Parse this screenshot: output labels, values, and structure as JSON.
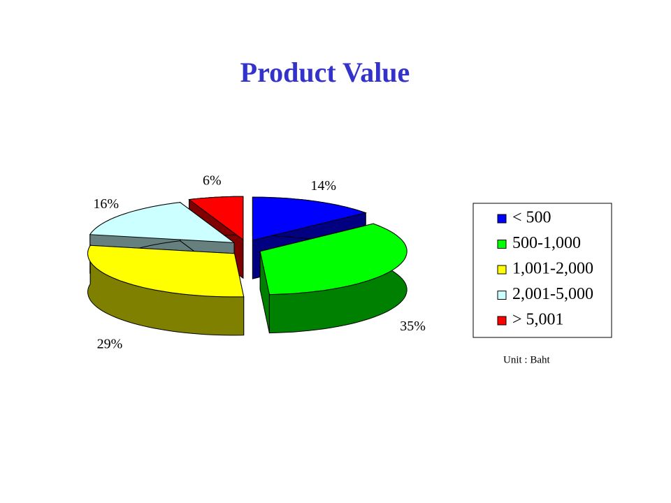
{
  "chart_data": {
    "type": "pie",
    "title": "Product Value",
    "categories": [
      "< 500",
      "500-1,000",
      "1,001-2,000",
      "2,001-5,000",
      "> 5,001"
    ],
    "values": [
      14,
      35,
      29,
      16,
      6
    ],
    "value_labels": [
      "14%",
      "35%",
      "29%",
      "16%",
      "6%"
    ],
    "colors": [
      "#0000ff",
      "#00ff00",
      "#ffff00",
      "#ccffff",
      "#ff0000"
    ],
    "legend": "right",
    "note": "Unit : Baht"
  }
}
